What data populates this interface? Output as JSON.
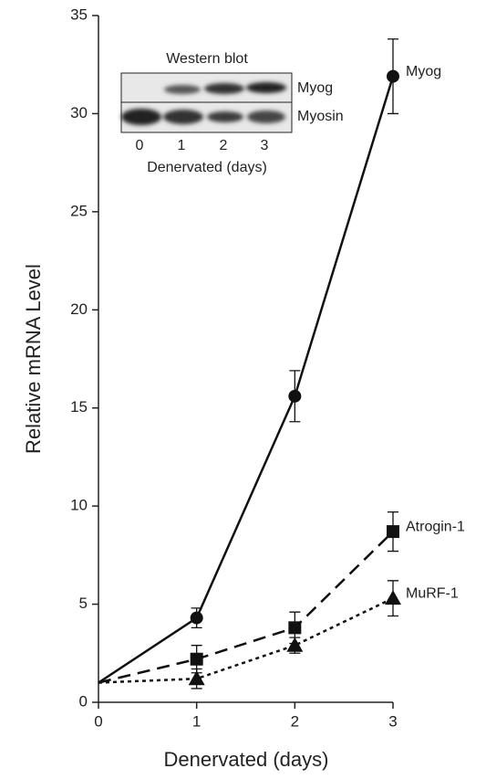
{
  "chart_data": {
    "type": "line",
    "x_label": "Denervated (days)",
    "y_label": "Relative mRNA Level",
    "x": [
      0,
      1,
      2,
      3
    ],
    "series": [
      {
        "name": "Myog",
        "color": "#111111",
        "line_style": "solid",
        "marker": "circle",
        "values": [
          1,
          4.3,
          15.6,
          31.9
        ],
        "errors": [
          null,
          0.5,
          1.3,
          1.9
        ]
      },
      {
        "name": "Atrogin-1",
        "color": "#111111",
        "line_style": "dashed",
        "marker": "square",
        "values": [
          1,
          2.2,
          3.8,
          8.7
        ],
        "errors": [
          null,
          0.7,
          0.8,
          1.0
        ]
      },
      {
        "name": "MuRF-1",
        "color": "#111111",
        "line_style": "dotted",
        "marker": "triangle",
        "values": [
          1,
          1.2,
          2.9,
          5.3
        ],
        "errors": [
          null,
          0.5,
          0.4,
          0.9
        ]
      }
    ],
    "xlim": [
      0,
      3
    ],
    "xticks": [
      0,
      1,
      2,
      3
    ],
    "ylim": [
      0,
      35
    ],
    "yticks": [
      0,
      5,
      10,
      15,
      20,
      25,
      30,
      35
    ],
    "grid": false,
    "inset": {
      "title": "Western blot",
      "rows": [
        "Myog",
        "Myosin"
      ],
      "lanes": [
        "0",
        "1",
        "2",
        "3"
      ],
      "x_label": "Denervated (days)"
    }
  }
}
